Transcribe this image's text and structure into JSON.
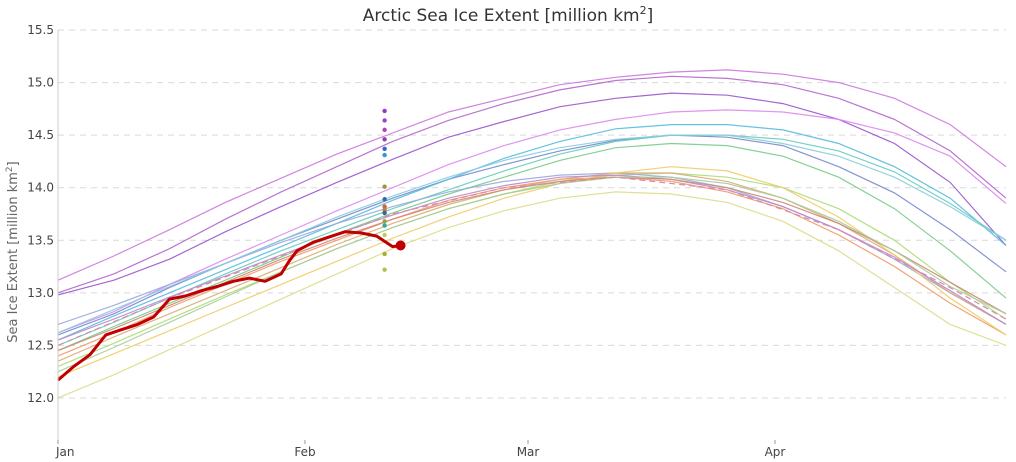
{
  "chart_data": {
    "type": "line",
    "title": "Arctic Sea Ice Extent [million km",
    "title_superscript": "2",
    "title_suffix": "]",
    "ylabel": "Sea Ice Extent [million km",
    "ylabel_superscript": "2",
    "ylabel_suffix": "]",
    "xlabel": "",
    "x_unit": "day of year",
    "xlim": [
      1,
      120
    ],
    "ylim": [
      11.6,
      15.5
    ],
    "yticks": [
      12.0,
      12.5,
      13.0,
      13.5,
      14.0,
      14.5,
      15.0,
      15.5
    ],
    "xticks": [
      {
        "day": 1,
        "label": "Jan"
      },
      {
        "day": 32,
        "label": "Feb"
      },
      {
        "day": 60,
        "label": "Mar"
      },
      {
        "day": 91,
        "label": "Apr"
      }
    ],
    "grid": true,
    "legend": "none",
    "current_year": {
      "color": "#c00000",
      "days": [
        1,
        3,
        5,
        7,
        9,
        11,
        13,
        15,
        17,
        19,
        21,
        23,
        25,
        27,
        29,
        30,
        31,
        33,
        35,
        37,
        39,
        41,
        43,
        44
      ],
      "values": [
        12.17,
        12.3,
        12.41,
        12.6,
        12.65,
        12.7,
        12.77,
        12.94,
        12.97,
        13.02,
        13.06,
        13.11,
        13.14,
        13.11,
        13.18,
        13.3,
        13.4,
        13.48,
        13.53,
        13.58,
        13.57,
        13.54,
        13.44,
        13.45
      ],
      "last_value": 13.45
    },
    "daily_markers": {
      "day": 42,
      "points": [
        {
          "value": 14.73,
          "color": "#9933cc"
        },
        {
          "value": 14.64,
          "color": "#a040cc"
        },
        {
          "value": 14.55,
          "color": "#aa44bb"
        },
        {
          "value": 14.46,
          "color": "#8844aa"
        },
        {
          "value": 14.37,
          "color": "#3366cc"
        },
        {
          "value": 14.31,
          "color": "#3399cc"
        },
        {
          "value": 14.01,
          "color": "#999933"
        },
        {
          "value": 13.89,
          "color": "#3366aa"
        },
        {
          "value": 13.82,
          "color": "#cc6633"
        },
        {
          "value": 13.79,
          "color": "#cc7744"
        },
        {
          "value": 13.76,
          "color": "#336699"
        },
        {
          "value": 13.68,
          "color": "#88aa44"
        },
        {
          "value": 13.64,
          "color": "#33aa99"
        },
        {
          "value": 13.55,
          "color": "#bbcc66"
        },
        {
          "value": 13.37,
          "color": "#aaaa33"
        },
        {
          "value": 13.22,
          "color": "#bbbb55"
        }
      ]
    },
    "series": [
      {
        "color": "#cc77dd",
        "values": [
          13.12,
          13.35,
          13.6,
          13.86,
          14.09,
          14.32,
          14.52,
          14.72,
          14.85,
          14.98,
          15.05,
          15.1,
          15.12,
          15.08,
          15.0,
          14.85,
          14.6,
          14.2
        ]
      },
      {
        "color": "#b366cc",
        "values": [
          13.0,
          13.18,
          13.42,
          13.7,
          13.96,
          14.2,
          14.44,
          14.64,
          14.8,
          14.93,
          15.02,
          15.06,
          15.04,
          14.98,
          14.85,
          14.65,
          14.35,
          13.9
        ]
      },
      {
        "color": "#9955cc",
        "values": [
          12.98,
          13.12,
          13.32,
          13.58,
          13.82,
          14.05,
          14.27,
          14.48,
          14.63,
          14.77,
          14.85,
          14.9,
          14.88,
          14.8,
          14.65,
          14.42,
          14.05,
          13.45
        ]
      },
      {
        "color": "#dd88ee",
        "values": [
          12.62,
          12.82,
          13.08,
          13.32,
          13.55,
          13.78,
          14.0,
          14.22,
          14.4,
          14.55,
          14.65,
          14.72,
          14.74,
          14.72,
          14.65,
          14.52,
          14.3,
          13.85
        ]
      },
      {
        "color": "#7788cc",
        "values": [
          12.6,
          12.8,
          13.05,
          13.28,
          13.5,
          13.7,
          13.9,
          14.08,
          14.22,
          14.35,
          14.45,
          14.5,
          14.48,
          14.4,
          14.2,
          13.95,
          13.6,
          13.2
        ]
      },
      {
        "color": "#55bbdd",
        "values": [
          12.55,
          12.78,
          13.0,
          13.22,
          13.44,
          13.66,
          13.88,
          14.08,
          14.28,
          14.44,
          14.56,
          14.6,
          14.6,
          14.55,
          14.42,
          14.2,
          13.9,
          13.45
        ]
      },
      {
        "color": "#66ccbb",
        "values": [
          12.5,
          12.72,
          12.95,
          13.18,
          13.4,
          13.6,
          13.8,
          13.98,
          14.16,
          14.32,
          14.44,
          14.5,
          14.5,
          14.46,
          14.35,
          14.15,
          13.85,
          13.5
        ]
      },
      {
        "color": "#77cc88",
        "values": [
          12.45,
          12.68,
          12.9,
          13.12,
          13.34,
          13.56,
          13.76,
          13.94,
          14.1,
          14.26,
          14.38,
          14.42,
          14.4,
          14.3,
          14.1,
          13.8,
          13.4,
          12.95
        ]
      },
      {
        "color": "#aadd77",
        "values": [
          12.3,
          12.52,
          12.75,
          12.98,
          13.2,
          13.42,
          13.62,
          13.8,
          13.94,
          14.06,
          14.12,
          14.14,
          14.1,
          14.0,
          13.8,
          13.5,
          13.1,
          12.75
        ]
      },
      {
        "color": "#99aadd",
        "values": [
          12.7,
          12.88,
          13.08,
          13.28,
          13.48,
          13.66,
          13.82,
          13.96,
          14.06,
          14.12,
          14.14,
          14.1,
          14.0,
          13.82,
          13.6,
          13.32,
          13.0,
          12.7
        ]
      },
      {
        "color": "#ee9966",
        "values": [
          12.4,
          12.62,
          12.86,
          13.08,
          13.3,
          13.5,
          13.7,
          13.88,
          14.0,
          14.08,
          14.1,
          14.06,
          13.96,
          13.8,
          13.55,
          13.25,
          12.9,
          12.6
        ]
      },
      {
        "color": "#ddaa77",
        "values": [
          12.35,
          12.58,
          12.8,
          13.02,
          13.24,
          13.46,
          13.66,
          13.84,
          13.98,
          14.08,
          14.14,
          14.14,
          14.06,
          13.9,
          13.66,
          13.36,
          13.0,
          12.7
        ]
      },
      {
        "color": "#eecc66",
        "values": [
          12.2,
          12.42,
          12.64,
          12.86,
          13.08,
          13.3,
          13.52,
          13.72,
          13.9,
          14.04,
          14.14,
          14.2,
          14.16,
          14.0,
          13.72,
          13.36,
          12.95,
          12.6
        ]
      },
      {
        "color": "#dddd88",
        "values": [
          12.0,
          12.22,
          12.46,
          12.7,
          12.94,
          13.18,
          13.42,
          13.62,
          13.78,
          13.9,
          13.96,
          13.94,
          13.86,
          13.68,
          13.4,
          13.05,
          12.7,
          12.5
        ]
      },
      {
        "color": "#88ccdd",
        "values": [
          12.62,
          12.84,
          13.06,
          13.28,
          13.5,
          13.72,
          13.92,
          14.1,
          14.26,
          14.38,
          14.46,
          14.5,
          14.5,
          14.42,
          14.3,
          14.1,
          13.82,
          13.5
        ]
      },
      {
        "color": "#bb88cc",
        "values": [
          12.55,
          12.75,
          12.96,
          13.16,
          13.36,
          13.56,
          13.74,
          13.9,
          14.02,
          14.1,
          14.12,
          14.08,
          13.98,
          13.82,
          13.6,
          13.34,
          13.02,
          12.7
        ]
      },
      {
        "color": "#cc8877",
        "values": [
          12.45,
          12.66,
          12.88,
          13.1,
          13.32,
          13.52,
          13.7,
          13.86,
          13.98,
          14.06,
          14.1,
          14.08,
          14.0,
          13.86,
          13.66,
          13.4,
          13.1,
          12.8
        ]
      },
      {
        "color": "#aacc99",
        "values": [
          12.25,
          12.48,
          12.72,
          12.96,
          13.2,
          13.42,
          13.62,
          13.8,
          13.94,
          14.04,
          14.1,
          14.1,
          14.04,
          13.9,
          13.68,
          13.4,
          13.06,
          12.8
        ]
      }
    ],
    "series_days": [
      1,
      8,
      15,
      22,
      29,
      36,
      43,
      50,
      57,
      64,
      71,
      78,
      85,
      92,
      99,
      106,
      113,
      120
    ],
    "median": {
      "color": "#dd88aa",
      "days": [
        1,
        15,
        29,
        43,
        57,
        71,
        85,
        99,
        113,
        120
      ],
      "values": [
        12.5,
        12.95,
        13.35,
        13.75,
        14.0,
        14.1,
        13.98,
        13.6,
        13.05,
        12.75
      ]
    }
  }
}
